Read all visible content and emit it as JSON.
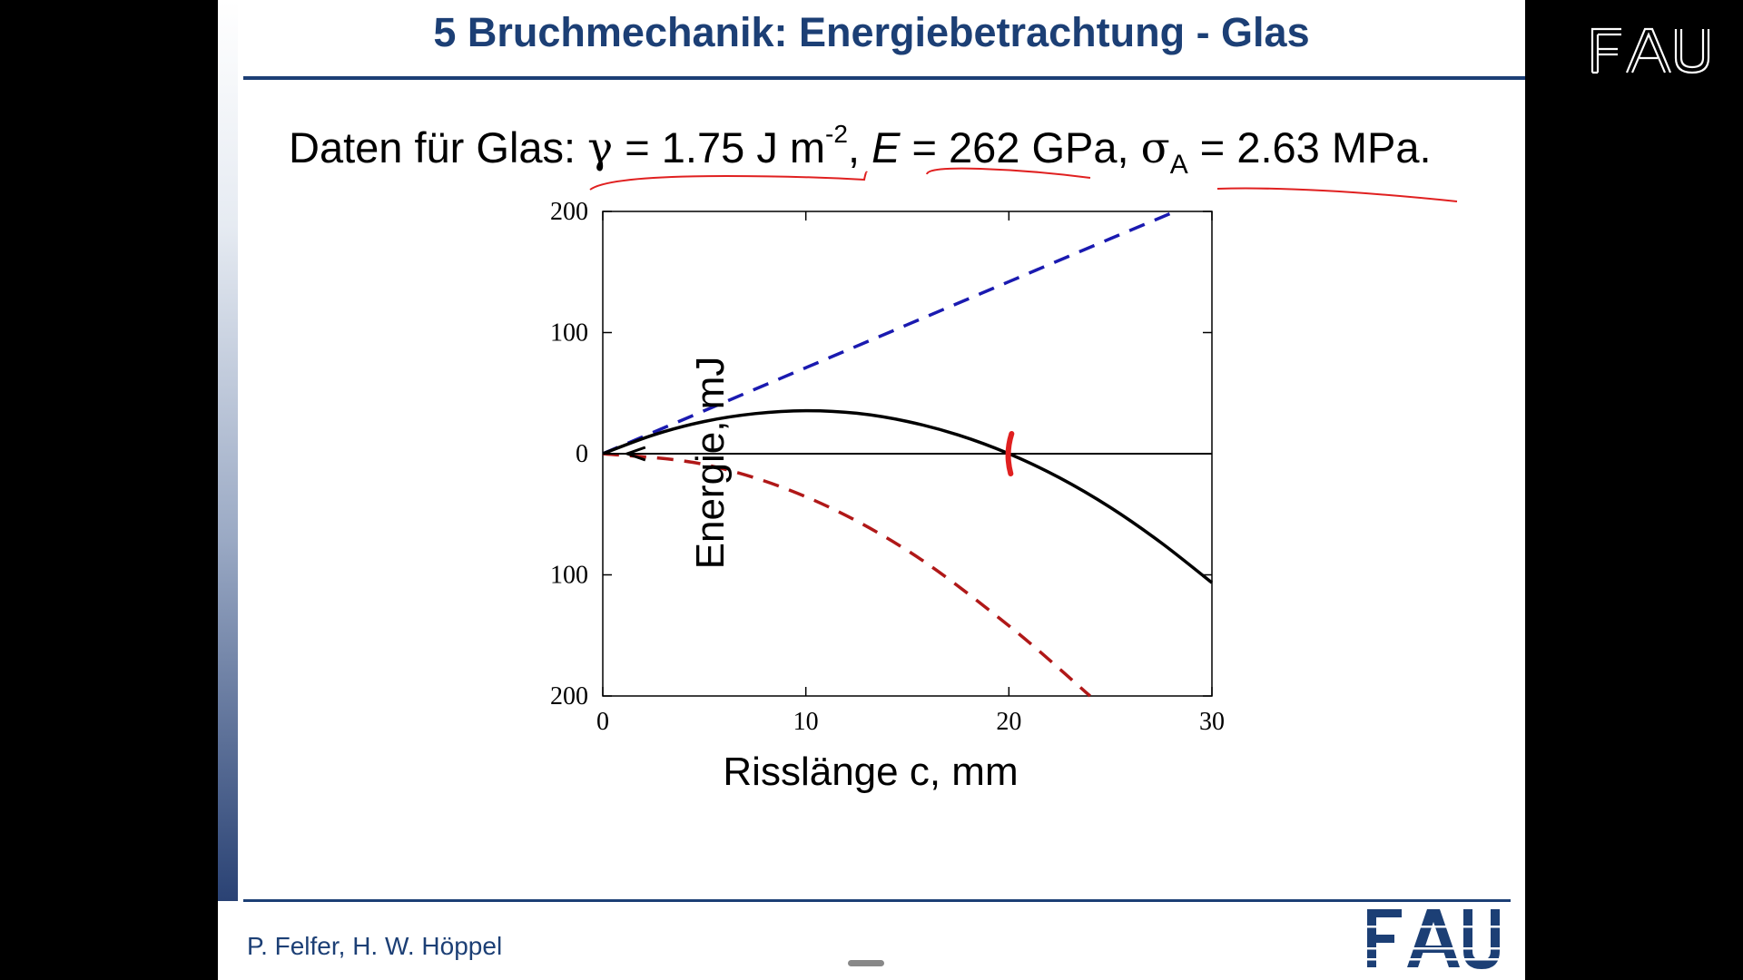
{
  "slide": {
    "title": "5 Bruchmechanik: Energiebetrachtung - Glas",
    "data_line": {
      "prefix": "Daten für Glas: ",
      "gamma_symbol": "γ",
      "gamma_value": " = 1.75 J m",
      "gamma_exp": "-2",
      "sep1": ", ",
      "e_symbol": "E",
      "e_value": " = 262 GPa, ",
      "sigma_symbol": "σ",
      "sigma_sub": "A",
      "sigma_value": " = 2.63 MPa."
    },
    "author": "P. Felfer, H. W. Höppel",
    "logo_text": "FAU"
  },
  "colors": {
    "brand_blue": "#1c3f75",
    "series_blue": "#1a1ab0",
    "series_red": "#b01818",
    "annotation_red": "#e02020"
  },
  "chart_data": {
    "type": "line",
    "title": "",
    "xlabel": "Risslänge c, mm",
    "ylabel": "Energie, mJ",
    "xlim": [
      0,
      30
    ],
    "ylim": [
      -200,
      200
    ],
    "xticks": [
      0,
      10,
      20,
      30
    ],
    "xtick_labels": [
      "0",
      "10",
      "20",
      "30"
    ],
    "yticks": [
      200,
      100,
      0,
      -100,
      -200
    ],
    "ytick_labels": [
      "200",
      "100",
      "0",
      "100",
      "200"
    ],
    "grid": false,
    "legend": "none",
    "series": [
      {
        "style": "dashed",
        "color": "#1a1ab0",
        "x": [
          0,
          5,
          10,
          15,
          20,
          25,
          28.2
        ],
        "y": [
          0,
          35.5,
          71,
          106.5,
          142,
          177.5,
          200
        ]
      },
      {
        "style": "dashed",
        "color": "#b01818",
        "x": [
          0,
          5,
          10,
          15,
          20,
          24
        ],
        "y": [
          0,
          -8.9,
          -35.5,
          -79.9,
          -142,
          -200
        ]
      },
      {
        "style": "solid",
        "color": "#000000",
        "x": [
          0,
          2.5,
          5,
          7.5,
          10,
          12.5,
          15,
          17.5,
          20,
          22.5,
          25,
          27.5,
          30
        ],
        "y": [
          0,
          15.5,
          26.6,
          33.1,
          35.5,
          33.4,
          26.6,
          15.5,
          0,
          -19.9,
          -44.4,
          -73.5,
          -106.5
        ]
      },
      {
        "style": "solid",
        "color": "#000000",
        "x": [
          0,
          30
        ],
        "y": [
          0,
          0
        ]
      }
    ],
    "annotations": [
      {
        "type": "arrow",
        "x": 1.2,
        "y": 0
      },
      {
        "type": "handwritten-mark",
        "x": 20,
        "y": 0
      }
    ]
  }
}
